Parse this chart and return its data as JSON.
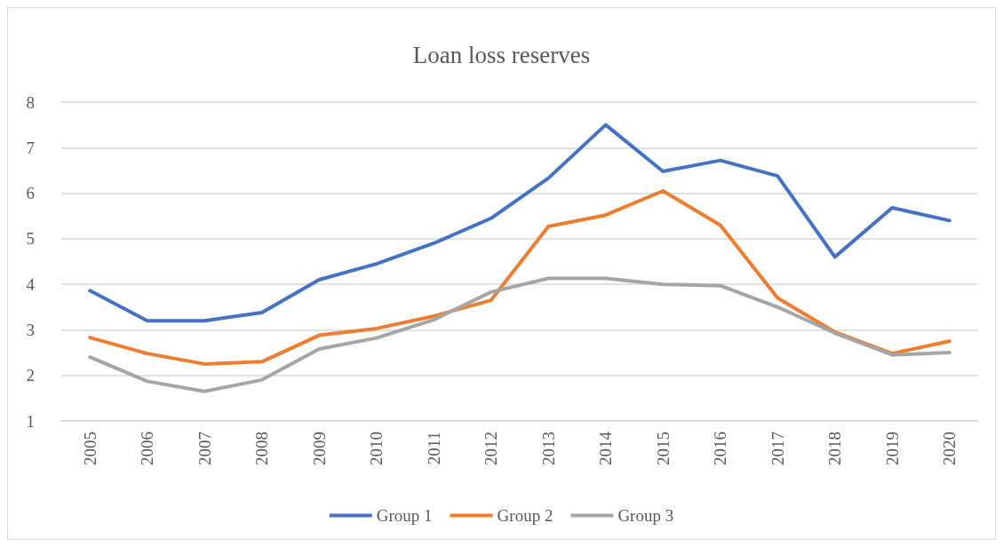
{
  "chart_data": {
    "type": "line",
    "title": "Loan loss reserves",
    "categories": [
      "2005",
      "2006",
      "2007",
      "2008",
      "2009",
      "2010",
      "2011",
      "2012",
      "2013",
      "2014",
      "2015",
      "2016",
      "2017",
      "2018",
      "2019",
      "2020"
    ],
    "series": [
      {
        "name": "Group 1",
        "color": "#4472c4",
        "values": [
          3.86,
          3.2,
          3.2,
          3.38,
          4.1,
          4.45,
          4.9,
          5.45,
          6.33,
          7.5,
          6.48,
          6.72,
          6.38,
          4.6,
          5.68,
          5.4
        ]
      },
      {
        "name": "Group 2",
        "color": "#ed7d31",
        "values": [
          2.83,
          2.48,
          2.25,
          2.3,
          2.88,
          3.03,
          3.3,
          3.65,
          5.27,
          5.52,
          6.05,
          5.3,
          3.7,
          2.95,
          2.48,
          2.75
        ]
      },
      {
        "name": "Group 3",
        "color": "#a5a5a5",
        "values": [
          2.4,
          1.87,
          1.65,
          1.9,
          2.58,
          2.82,
          3.22,
          3.83,
          4.13,
          4.13,
          4.0,
          3.97,
          3.5,
          2.93,
          2.45,
          2.5
        ]
      }
    ],
    "ylim": [
      1,
      8
    ],
    "yticks": [
      1,
      2,
      3,
      4,
      5,
      6,
      7,
      8
    ],
    "grid": "y",
    "legend": "bottom",
    "marker": "none",
    "line_style": "solid"
  }
}
